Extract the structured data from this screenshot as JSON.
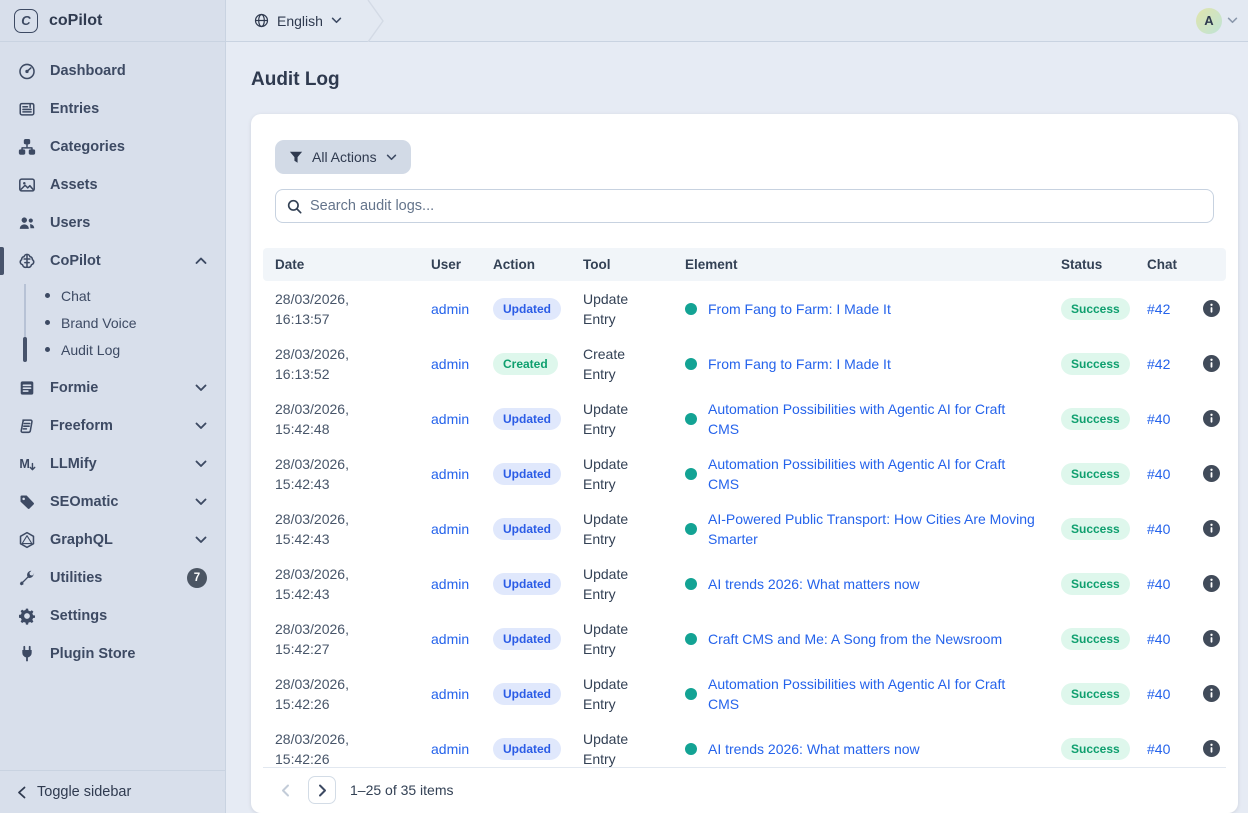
{
  "brand": {
    "name": "coPilot",
    "logo_letter": "C"
  },
  "topbar": {
    "language": "English"
  },
  "user": {
    "avatar_letter": "A"
  },
  "page": {
    "title": "Audit Log"
  },
  "toolbar": {
    "filter_label": "All Actions",
    "search_placeholder": "Search audit logs..."
  },
  "sidebar": {
    "items": [
      {
        "label": "Dashboard",
        "icon": "gauge"
      },
      {
        "label": "Entries",
        "icon": "newspaper"
      },
      {
        "label": "Categories",
        "icon": "sitemap"
      },
      {
        "label": "Assets",
        "icon": "image"
      },
      {
        "label": "Users",
        "icon": "users"
      },
      {
        "label": "CoPilot",
        "icon": "brain",
        "chevron": "up",
        "active": true,
        "children": [
          {
            "label": "Chat"
          },
          {
            "label": "Brand Voice"
          },
          {
            "label": "Audit Log",
            "active": true
          }
        ]
      },
      {
        "label": "Formie",
        "icon": "form",
        "chevron": "down"
      },
      {
        "label": "Freeform",
        "icon": "scribble",
        "chevron": "down"
      },
      {
        "label": "LLMify",
        "icon": "m-arrow",
        "chevron": "down"
      },
      {
        "label": "SEOmatic",
        "icon": "tag",
        "chevron": "down"
      },
      {
        "label": "GraphQL",
        "icon": "hexagon",
        "chevron": "down"
      },
      {
        "label": "Utilities",
        "icon": "wrench",
        "badge": "7"
      },
      {
        "label": "Settings",
        "icon": "gear"
      },
      {
        "label": "Plugin Store",
        "icon": "plug"
      }
    ],
    "toggle_label": "Toggle sidebar"
  },
  "table": {
    "columns": [
      "Date",
      "User",
      "Action",
      "Tool",
      "Element",
      "Status",
      "Chat"
    ],
    "rows": [
      {
        "date": "28/03/2026,",
        "time": "16:13:57",
        "user": "admin",
        "action": "Updated",
        "tool": "Update Entry",
        "element": "From Fang to Farm: I Made It",
        "status": "Success",
        "chat": "#42"
      },
      {
        "date": "28/03/2026,",
        "time": "16:13:52",
        "user": "admin",
        "action": "Created",
        "tool": "Create Entry",
        "element": "From Fang to Farm: I Made It",
        "status": "Success",
        "chat": "#42"
      },
      {
        "date": "28/03/2026,",
        "time": "15:42:48",
        "user": "admin",
        "action": "Updated",
        "tool": "Update Entry",
        "element": "Automation Possibilities with Agentic AI for Craft CMS",
        "status": "Success",
        "chat": "#40"
      },
      {
        "date": "28/03/2026,",
        "time": "15:42:43",
        "user": "admin",
        "action": "Updated",
        "tool": "Update Entry",
        "element": "Automation Possibilities with Agentic AI for Craft CMS",
        "status": "Success",
        "chat": "#40"
      },
      {
        "date": "28/03/2026,",
        "time": "15:42:43",
        "user": "admin",
        "action": "Updated",
        "tool": "Update Entry",
        "element": "AI-Powered Public Transport: How Cities Are Moving Smarter",
        "status": "Success",
        "chat": "#40"
      },
      {
        "date": "28/03/2026,",
        "time": "15:42:43",
        "user": "admin",
        "action": "Updated",
        "tool": "Update Entry",
        "element": "AI trends 2026: What matters now",
        "status": "Success",
        "chat": "#40"
      },
      {
        "date": "28/03/2026,",
        "time": "15:42:27",
        "user": "admin",
        "action": "Updated",
        "tool": "Update Entry",
        "element": "Craft CMS and Me: A Song from the Newsroom",
        "status": "Success",
        "chat": "#40"
      },
      {
        "date": "28/03/2026,",
        "time": "15:42:26",
        "user": "admin",
        "action": "Updated",
        "tool": "Update Entry",
        "element": "Automation Possibilities with Agentic AI for Craft CMS",
        "status": "Success",
        "chat": "#40"
      },
      {
        "date": "28/03/2026,",
        "time": "15:42:26",
        "user": "admin",
        "action": "Updated",
        "tool": "Update Entry",
        "element": "AI trends 2026: What matters now",
        "status": "Success",
        "chat": "#40"
      }
    ]
  },
  "pagination": {
    "label": "1–25 of 35 items"
  },
  "colors": {
    "link": "#2563eb",
    "dot-teal": "#13a394",
    "badge-updated-bg": "#e0e8fc",
    "badge-updated-text": "#2b5ce6",
    "badge-created-bg": "#def7ec",
    "badge-created-text": "#0e9f6e",
    "badge-success-bg": "#def7ec",
    "badge-success-text": "#0e9f6e",
    "sidebar-bg": "#d8dfeb",
    "topbar-bg": "#e3e9f2",
    "main-bg": "#e6ebf4",
    "border": "#c9d3e1"
  }
}
